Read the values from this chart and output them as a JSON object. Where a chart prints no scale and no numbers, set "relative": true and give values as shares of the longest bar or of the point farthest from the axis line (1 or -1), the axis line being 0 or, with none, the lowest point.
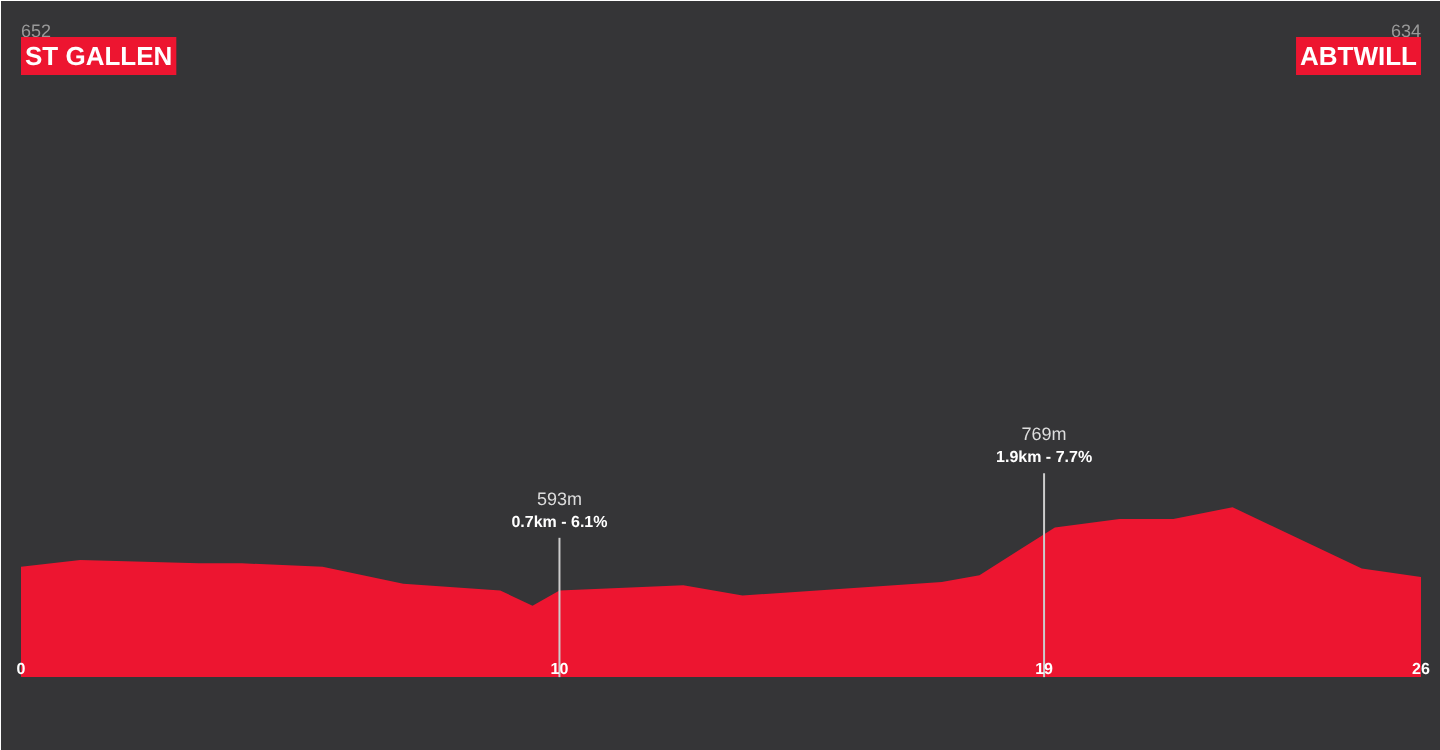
{
  "chart_data": {
    "type": "area",
    "relative": true,
    "color": "#ed1530",
    "x": [
      0,
      1.1,
      3.3,
      4.1,
      5.6,
      7.1,
      8.9,
      9.5,
      10,
      12.3,
      13.4,
      17.1,
      17.8,
      19.2,
      20.4,
      21.4,
      22.5,
      24.9,
      26
    ],
    "values": [
      0.65,
      0.69,
      0.67,
      0.67,
      0.65,
      0.55,
      0.51,
      0.42,
      0.51,
      0.54,
      0.48,
      0.56,
      0.6,
      0.88,
      0.93,
      0.93,
      1.0,
      0.64,
      0.59
    ],
    "xlim": [
      0,
      26
    ],
    "xticks": [
      0,
      10,
      19,
      26
    ],
    "grid": false,
    "legend": false,
    "ref_lines": [
      {
        "axis": "x",
        "value": 10,
        "label": "593m"
      },
      {
        "axis": "x",
        "value": 19,
        "label": "769m"
      }
    ],
    "annotations": [
      "652",
      "ST GALLEN",
      "634",
      "ABTWILL",
      {
        "text": "0.7km - 6.1%",
        "x": 10,
        "y": 0.86
      },
      {
        "text": "1.9km - 7.7%",
        "x": 19,
        "y": 1.24
      }
    ]
  }
}
